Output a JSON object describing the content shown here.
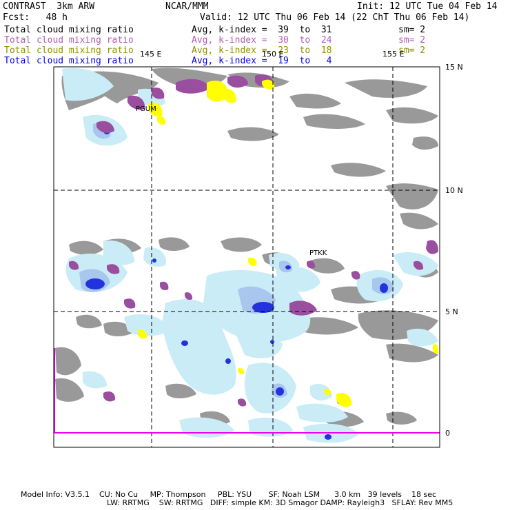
{
  "header": {
    "model_name": "CONTRAST  3km ARW",
    "org": "NCAR/MMM",
    "init": "Init: 12 UTC Tue 04 Feb 14",
    "forecast": "Fcst:   48 h",
    "valid": "Valid: 12 UTC Thu 06 Feb 14 (22 ChT Thu 06 Feb 14)"
  },
  "fields": [
    {
      "name": "Total cloud mixing ratio",
      "index": "Avg, k-index =  39  to  31",
      "smooth": "sm= 2",
      "color": "#000000"
    },
    {
      "name": "Total cloud mixing ratio",
      "index": "Avg, k-index =  30  to  24",
      "smooth": "sm= 2",
      "color": "#b060b0"
    },
    {
      "name": "Total cloud mixing ratio",
      "index": "Avg, k-index =  23  to  18",
      "smooth": "sm= 2",
      "color": "#909000"
    },
    {
      "name": "Total cloud mixing ratio",
      "index": "Avg, k-index =  19  to   4",
      "smooth": "",
      "color": "#0000ee"
    }
  ],
  "map": {
    "lon_labels": [
      "145 E",
      "150 E",
      "155 E"
    ],
    "lat_labels": [
      "15 N",
      "10 N",
      "5 N",
      "0"
    ],
    "stations": [
      "PGUM",
      "PTKK"
    ],
    "colors": {
      "layer1": "#999999",
      "layer2": "#9a4ea0",
      "layer3": "#ffff00",
      "layer4_light": "#c9ecf7",
      "layer4_mid": "#a9c6ee",
      "layer4_dark": "#2233dd",
      "equator_line": "#ee00ee"
    }
  },
  "footer": {
    "line1": "Model Info: V3.5.1    CU: No Cu     MP: Thompson     PBL: YSU       SF: Noah LSM      3.0 km   39 levels    18 sec",
    "line2": "LW: RRTMG    SW: RRTMG   DIFF: simple KM: 3D Smagor DAMP: Rayleigh3   SFLAY: Rev MM5"
  }
}
